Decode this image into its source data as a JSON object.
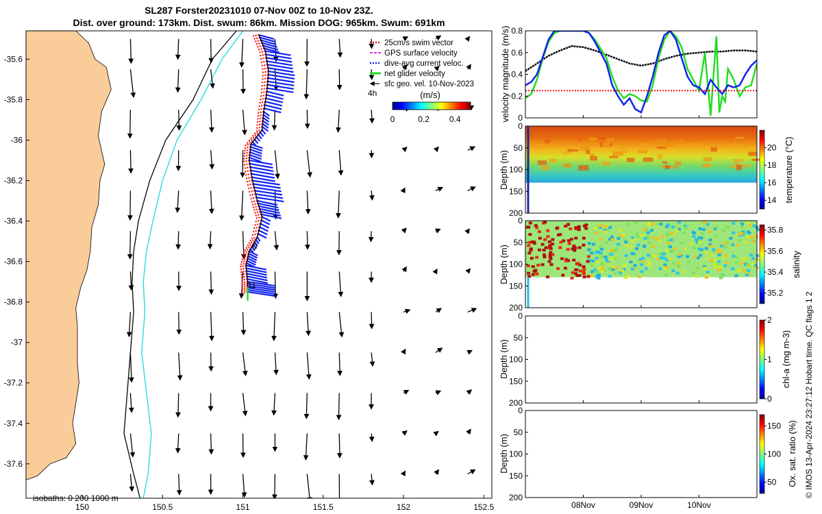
{
  "title_line1": "SL287 Forster20231010 07-Nov 00Z to 10-Nov 23Z.",
  "title_line2": "Dist. over ground: 173km. Dist. swum: 86km. Mission DOG: 965km. Swum: 691km",
  "colors": {
    "land": "#f9cc9a",
    "isobath_200": "#33dddd",
    "isobath_1000": "#000000",
    "swim_vector": "#ee1111",
    "dive_avg": "#1122ee",
    "net_velocity": "#22dd22",
    "black": "#000000"
  },
  "chart_data": [
    {
      "type": "map",
      "xlim": [
        149.65,
        152.55
      ],
      "ylim": [
        -37.77,
        -35.46
      ],
      "xticks": [
        150,
        150.5,
        151,
        151.5,
        152,
        152.5
      ],
      "xtick_labels": [
        "150",
        "150.5",
        "151",
        "151.5",
        "152",
        "152.5"
      ],
      "yticks": [
        -35.6,
        -35.8,
        -36,
        -36.2,
        -36.4,
        -36.6,
        -36.8,
        -37,
        -37.2,
        -37.4,
        -37.6
      ],
      "ytick_labels": [
        "-35.6",
        "-35.8",
        "-36",
        "-36.2",
        "-36.4",
        "-36.6",
        "-36.8",
        "-37",
        "-37.2",
        "-37.4",
        "-37.6"
      ],
      "legend": [
        {
          "label": "25cm/s swim vector",
          "color": "#ee1111",
          "style": "dots"
        },
        {
          "label": "GPS surface velocity",
          "color": "#dd33dd",
          "style": "dash"
        },
        {
          "label": "dive-avg current veloc.",
          "color": "#1122ee",
          "style": "dots"
        },
        {
          "label": "net glider velocity",
          "color": "#22dd22",
          "style": "line"
        },
        {
          "label": "sfc geo. vel. 10-Nov-2023",
          "color": "#000000",
          "style": "arrow"
        }
      ],
      "legend_placement": "top-right",
      "scale_label": "4h",
      "colorbar": {
        "title": "(m/s)",
        "ticks": [
          0,
          0.2,
          0.4
        ],
        "tick_labels": [
          "0",
          "0.2",
          "0.4"
        ],
        "range": [
          0,
          0.5
        ]
      },
      "isobath_label": "isobaths: 0   200  1000 m",
      "track_labels": [
        "0",
        "11"
      ],
      "glider_track": [
        [
          151.1,
          -35.48
        ],
        [
          151.14,
          -35.56
        ],
        [
          151.16,
          -35.66
        ],
        [
          151.15,
          -35.76
        ],
        [
          151.13,
          -35.86
        ],
        [
          151.12,
          -35.95
        ],
        [
          151.05,
          -36.02
        ],
        [
          151.04,
          -36.1
        ],
        [
          151.06,
          -36.2
        ],
        [
          151.09,
          -36.3
        ],
        [
          151.12,
          -36.38
        ],
        [
          151.09,
          -36.48
        ],
        [
          151.04,
          -36.55
        ],
        [
          151.02,
          -36.62
        ],
        [
          151.03,
          -36.7
        ],
        [
          151.03,
          -36.76
        ]
      ],
      "coastline": [
        [
          149.65,
          -35.46
        ],
        [
          149.96,
          -35.46
        ],
        [
          150.04,
          -35.52
        ],
        [
          150.08,
          -35.6
        ],
        [
          150.15,
          -35.64
        ],
        [
          150.18,
          -35.75
        ],
        [
          150.12,
          -35.86
        ],
        [
          150.1,
          -35.98
        ],
        [
          150.12,
          -36.05
        ],
        [
          150.14,
          -36.12
        ],
        [
          150.11,
          -36.2
        ],
        [
          150.1,
          -36.32
        ],
        [
          150.06,
          -36.43
        ],
        [
          150.05,
          -36.55
        ],
        [
          150.03,
          -36.64
        ],
        [
          149.99,
          -36.73
        ],
        [
          149.96,
          -36.83
        ],
        [
          149.97,
          -36.92
        ],
        [
          149.97,
          -37.02
        ],
        [
          149.97,
          -37.1
        ],
        [
          149.98,
          -37.2
        ],
        [
          149.96,
          -37.3
        ],
        [
          149.94,
          -37.4
        ],
        [
          149.96,
          -37.5
        ],
        [
          149.9,
          -37.57
        ],
        [
          149.8,
          -37.6
        ],
        [
          149.72,
          -37.66
        ],
        [
          149.65,
          -37.68
        ]
      ],
      "isobath_200m": [
        [
          151.0,
          -35.46
        ],
        [
          150.87,
          -35.6
        ],
        [
          150.74,
          -35.8
        ],
        [
          150.59,
          -36.0
        ],
        [
          150.5,
          -36.2
        ],
        [
          150.44,
          -36.4
        ],
        [
          150.4,
          -36.55
        ],
        [
          150.38,
          -36.7
        ],
        [
          150.39,
          -36.85
        ],
        [
          150.37,
          -37.05
        ],
        [
          150.4,
          -37.25
        ],
        [
          150.43,
          -37.45
        ],
        [
          150.41,
          -37.65
        ],
        [
          150.38,
          -37.77
        ]
      ],
      "isobath_1000m": [
        [
          150.96,
          -35.46
        ],
        [
          150.81,
          -35.6
        ],
        [
          150.69,
          -35.8
        ],
        [
          150.52,
          -36.0
        ],
        [
          150.42,
          -36.2
        ],
        [
          150.35,
          -36.4
        ],
        [
          150.32,
          -36.55
        ],
        [
          150.31,
          -36.7
        ],
        [
          150.32,
          -36.85
        ],
        [
          150.3,
          -37.05
        ],
        [
          150.28,
          -37.25
        ],
        [
          150.26,
          -37.45
        ],
        [
          150.32,
          -37.65
        ],
        [
          150.36,
          -37.77
        ]
      ],
      "arrow_grid": {
        "lon": [
          150.3,
          150.6,
          150.8,
          151.0,
          151.2,
          151.4,
          151.6,
          151.8,
          152.0,
          152.2,
          152.4
        ],
        "lat": [
          -35.5,
          -35.65,
          -35.85,
          -36.05,
          -36.25,
          -36.45,
          -36.65,
          -36.85,
          -37.05,
          -37.25,
          -37.45,
          -37.65
        ]
      }
    },
    {
      "type": "line",
      "xlim": [
        0,
        4
      ],
      "ylim": [
        0,
        0.8
      ],
      "xticks": [
        1,
        2,
        3
      ],
      "xtick_labels": [
        "08Nov",
        "09Nov",
        "10Nov"
      ],
      "yticks": [
        0,
        0.2,
        0.4,
        0.6,
        0.8
      ],
      "ytick_labels": [
        "0",
        "0.2",
        "0.4",
        "0.6",
        "0.8"
      ],
      "ylabel": "velocity magnitude (m/s)",
      "series": [
        {
          "color": "#000000",
          "x": [
            0,
            0.2,
            0.4,
            0.6,
            0.8,
            1.0,
            1.2,
            1.4,
            1.6,
            1.8,
            2.0,
            2.2,
            2.4,
            2.6,
            2.8,
            3.0,
            3.2,
            3.4,
            3.6,
            3.8,
            4.0
          ],
          "values": [
            0.43,
            0.5,
            0.57,
            0.62,
            0.66,
            0.65,
            0.62,
            0.58,
            0.54,
            0.5,
            0.48,
            0.5,
            0.54,
            0.57,
            0.59,
            0.6,
            0.61,
            0.61,
            0.62,
            0.62,
            0.61
          ]
        },
        {
          "color": "#22dd22",
          "x": [
            0,
            0.1,
            0.2,
            0.3,
            0.4,
            0.5,
            0.6,
            0.7,
            0.8,
            0.9,
            1.0,
            1.1,
            1.2,
            1.4,
            1.5,
            1.6,
            1.7,
            1.8,
            1.9,
            2.0,
            2.1,
            2.2,
            2.3,
            2.4,
            2.5,
            2.6,
            2.7,
            2.8,
            2.9,
            3.0,
            3.1,
            3.2,
            3.3,
            3.35,
            3.4,
            3.45,
            3.5,
            3.6,
            3.7,
            3.8,
            3.9,
            4.0
          ],
          "values": [
            0.18,
            0.22,
            0.35,
            0.55,
            0.7,
            0.78,
            0.8,
            0.8,
            0.8,
            0.8,
            0.8,
            0.78,
            0.72,
            0.55,
            0.38,
            0.25,
            0.18,
            0.22,
            0.2,
            0.16,
            0.15,
            0.3,
            0.55,
            0.72,
            0.8,
            0.75,
            0.65,
            0.45,
            0.35,
            0.25,
            0.6,
            0.02,
            0.75,
            0.05,
            0.2,
            0.15,
            0.45,
            0.35,
            0.2,
            0.28,
            0.3,
            0.5
          ]
        },
        {
          "color": "#1122ee",
          "x": [
            0,
            0.1,
            0.2,
            0.3,
            0.4,
            0.5,
            0.6,
            0.7,
            0.8,
            0.9,
            1.0,
            1.1,
            1.2,
            1.4,
            1.5,
            1.6,
            1.7,
            1.8,
            1.9,
            2.0,
            2.1,
            2.2,
            2.3,
            2.4,
            2.5,
            2.6,
            2.7,
            2.8,
            2.9,
            3.0,
            3.1,
            3.2,
            3.3,
            3.4,
            3.5,
            3.6,
            3.7,
            3.8,
            3.9,
            4.0
          ],
          "values": [
            0.3,
            0.33,
            0.4,
            0.56,
            0.72,
            0.8,
            0.8,
            0.8,
            0.8,
            0.8,
            0.8,
            0.78,
            0.7,
            0.5,
            0.3,
            0.2,
            0.12,
            0.18,
            0.08,
            0.05,
            0.2,
            0.38,
            0.6,
            0.76,
            0.8,
            0.72,
            0.55,
            0.38,
            0.3,
            0.28,
            0.22,
            0.35,
            0.28,
            0.22,
            0.3,
            0.28,
            0.3,
            0.4,
            0.48,
            0.53
          ]
        },
        {
          "color": "#ee1111",
          "style": "dots",
          "x": [
            0,
            4
          ],
          "values": [
            0.25,
            0.25
          ]
        }
      ]
    },
    {
      "type": "heatmap",
      "ylabel": "Depth (m)",
      "ylim": [
        0,
        200
      ],
      "yticks": [
        0,
        50,
        100,
        150,
        200
      ],
      "ytick_labels": [
        "0",
        "50",
        "100",
        "150",
        "200"
      ],
      "colorbar_label": "temperature (°C)",
      "colorbar_range": [
        13,
        22
      ],
      "colorbar_ticks": [
        14,
        16,
        18,
        20
      ],
      "colorbar_tick_labels": [
        "14",
        "16",
        "18",
        "20"
      ],
      "max_depth": 130
    },
    {
      "type": "heatmap",
      "ylabel": "Depth (m)",
      "ylim": [
        0,
        200
      ],
      "yticks": [
        0,
        50,
        100,
        150,
        200
      ],
      "ytick_labels": [
        "0",
        "50",
        "100",
        "150",
        "200"
      ],
      "colorbar_label": "salinity",
      "colorbar_range": [
        35.1,
        35.85
      ],
      "colorbar_ticks": [
        35.2,
        35.4,
        35.6,
        35.8
      ],
      "colorbar_tick_labels": [
        "35.2",
        "35.4",
        "35.6",
        "35.8"
      ],
      "max_depth": 130
    },
    {
      "type": "heatmap",
      "ylabel": "Depth (m)",
      "ylim": [
        0,
        200
      ],
      "yticks": [
        0,
        50,
        100,
        150,
        200
      ],
      "ytick_labels": [
        "0",
        "50",
        "100",
        "150",
        "200"
      ],
      "colorbar_label": "chl-a (mg m-3)",
      "colorbar_range": [
        0,
        2
      ],
      "colorbar_ticks": [
        0,
        1,
        2
      ],
      "colorbar_tick_labels": [
        "0",
        "1",
        "2"
      ]
    },
    {
      "type": "heatmap",
      "ylabel": "Depth (m)",
      "ylim": [
        0,
        200
      ],
      "yticks": [
        0,
        50,
        100,
        150,
        200
      ],
      "ytick_labels": [
        "0",
        "50",
        "100",
        "150",
        "200"
      ],
      "xticks": [
        1,
        2,
        3
      ],
      "xtick_labels": [
        "08Nov",
        "09Nov",
        "10Nov"
      ],
      "colorbar_label": "Ox. sat. ratio (%)",
      "colorbar_range": [
        30,
        170
      ],
      "colorbar_ticks": [
        50,
        100,
        150
      ],
      "colorbar_tick_labels": [
        "50",
        "100",
        "150"
      ]
    }
  ],
  "credit": "© IMOS 13-Apr-2024 23:27:12 Hobart time. QC flags 1  2"
}
